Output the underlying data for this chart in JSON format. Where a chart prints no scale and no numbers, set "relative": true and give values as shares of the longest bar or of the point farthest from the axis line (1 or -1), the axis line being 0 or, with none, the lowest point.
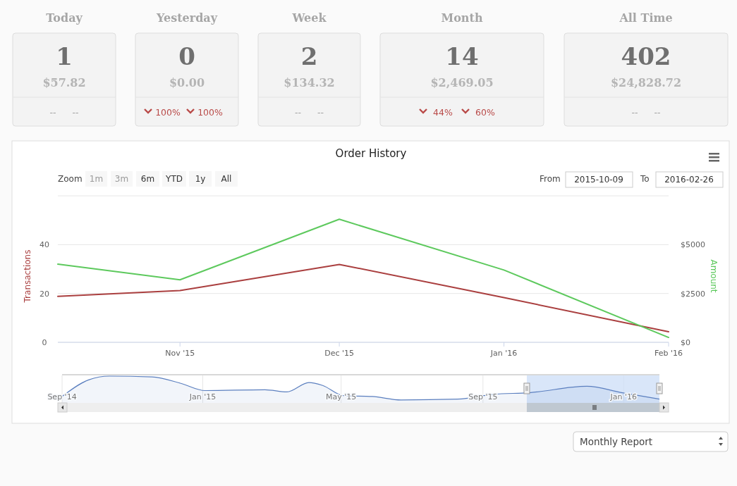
{
  "chart_data": [
    {
      "type": "other",
      "title": "Today",
      "annotations": [
        "1",
        "$57.82",
        "--",
        "--"
      ]
    },
    {
      "type": "other",
      "title": "Yesterday",
      "annotations": [
        "0",
        "$0.00",
        "100%",
        "100%"
      ]
    },
    {
      "type": "other",
      "title": "Week",
      "annotations": [
        "2",
        "$134.32",
        "--",
        "--"
      ]
    },
    {
      "type": "other",
      "title": "Month",
      "annotations": [
        "14",
        "$2,469.05",
        "44%",
        "60%"
      ]
    },
    {
      "type": "other",
      "title": "All Time",
      "annotations": [
        "402",
        "$24,828.72",
        "--",
        "--"
      ]
    },
    {
      "type": "line",
      "title": "Order History",
      "ylabel": "Transactions",
      "y2label": "Amount",
      "x": [
        "2015-10-09",
        "2015-11-01",
        "2015-12-01",
        "2016-01-01",
        "2016-02-01"
      ],
      "xlim": [
        "2015-10-09",
        "2016-02-01"
      ],
      "xticks": [
        {
          "value": "2015-11-01",
          "label": "Nov '15"
        },
        {
          "value": "2015-12-01",
          "label": "Dec '15"
        },
        {
          "value": "2016-01-01",
          "label": "Jan '16"
        },
        {
          "value": "2016-02-01",
          "label": "Feb '16"
        }
      ],
      "ylim": [
        0,
        60
      ],
      "yticks": [
        0,
        20,
        40,
        {
          "value": 60,
          "label": null
        }
      ],
      "y2lim": [
        0,
        7500
      ],
      "y2ticks": [
        {
          "value": 0,
          "label": "$0"
        },
        {
          "value": 2500,
          "label": "$2500"
        },
        {
          "value": 5000,
          "label": "$5000"
        }
      ],
      "grid": "y",
      "series": [
        {
          "color": "#aa3f3f",
          "values": [
            18.8,
            21.2,
            31.9,
            18.3,
            4.3
          ]
        },
        {
          "color": "#5dc95d",
          "axis": "y2",
          "values": [
            4000,
            3200,
            6300,
            3700,
            250
          ]
        }
      ],
      "annotations": [
        "Zoom",
        "1m",
        "3m",
        "6m",
        "YTD",
        "1y",
        "All",
        "From",
        "2015-10-09",
        "To",
        "2016-02-26",
        "Monthly Report"
      ]
    },
    {
      "type": "area",
      "relative": true,
      "color": "#5b7fbf",
      "x": [
        "2014-09-01",
        "2014-09-24",
        "2014-10-12",
        "2014-11-18",
        "2014-12-13",
        "2015-01-03",
        "2015-02-24",
        "2015-03-15",
        "2015-04-03",
        "2015-04-15",
        "2015-05-03",
        "2015-05-28",
        "2015-06-22",
        "2015-08-10",
        "2015-09-10",
        "2015-10-11",
        "2015-11-30",
        "2015-12-31",
        "2016-02-01"
      ],
      "values": [
        0.24,
        0.86,
        1,
        0.97,
        0.73,
        0.46,
        0.49,
        0.41,
        0.76,
        0.65,
        0.27,
        0.24,
        0.11,
        0.14,
        0.32,
        0.38,
        0.62,
        0.38,
        0.14
      ],
      "xlim": [
        "2014-09-01",
        "2016-02-01"
      ],
      "xticks": [
        {
          "value": "2014-09-01",
          "label": "Sep '14"
        },
        {
          "value": "2015-01-01",
          "label": "Jan '15"
        },
        {
          "value": "2015-05-01",
          "label": "May '15"
        },
        {
          "value": "2015-09-01",
          "label": "Sep '15"
        },
        {
          "value": "2016-01-01",
          "label": "Jan '16"
        }
      ],
      "grid": "x",
      "bands": [
        {
          "axis": "x",
          "from": "2015-10-09",
          "to": "2016-02-01",
          "color": "#cfe0f7"
        }
      ]
    }
  ]
}
